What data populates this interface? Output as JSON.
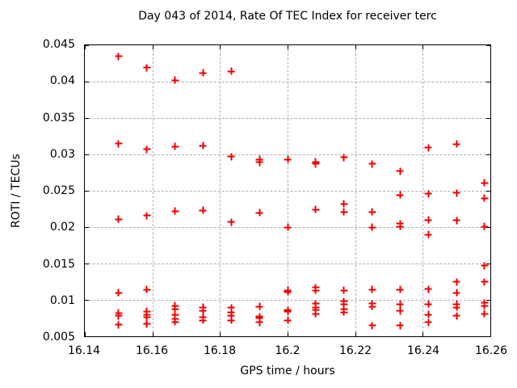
{
  "chart_data": {
    "type": "scatter",
    "title": "Day 043 of 2014, Rate Of TEC Index for receiver terc",
    "xlabel": "GPS time / hours",
    "ylabel": "ROTI / TECUs",
    "xlim": [
      16.14,
      16.26
    ],
    "ylim": [
      0.005,
      0.045
    ],
    "grid": true,
    "legend": false,
    "marker": "plus",
    "marker_color": "#ee0000",
    "grid_color": "#b0b0b0",
    "frame_color": "#000000",
    "xticks": {
      "values": [
        16.14,
        16.16,
        16.18,
        16.2,
        16.22,
        16.24,
        16.26
      ],
      "labels": [
        "16.14",
        "16.16",
        "16.18",
        "16.2",
        "16.22",
        "16.24",
        "16.26"
      ]
    },
    "yticks": {
      "values": [
        0.005,
        0.01,
        0.015,
        0.02,
        0.025,
        0.03,
        0.035,
        0.04,
        0.045
      ],
      "labels": [
        "0.005",
        "0.01",
        "0.015",
        "0.02",
        "0.025",
        "0.03",
        "0.035",
        "0.04",
        "0.045"
      ]
    },
    "series": [
      {
        "name": "ROTI",
        "points": [
          [
            16.15,
            0.0435
          ],
          [
            16.15,
            0.0315
          ],
          [
            16.15,
            0.0211
          ],
          [
            16.15,
            0.011
          ],
          [
            16.15,
            0.0082
          ],
          [
            16.15,
            0.0078
          ],
          [
            16.15,
            0.0066
          ],
          [
            16.1583,
            0.0419
          ],
          [
            16.1583,
            0.0307
          ],
          [
            16.1583,
            0.0216
          ],
          [
            16.1583,
            0.0114
          ],
          [
            16.1583,
            0.0084
          ],
          [
            16.1583,
            0.008
          ],
          [
            16.1583,
            0.0076
          ],
          [
            16.1583,
            0.0067
          ],
          [
            16.1667,
            0.0402
          ],
          [
            16.1667,
            0.0311
          ],
          [
            16.1667,
            0.0222
          ],
          [
            16.1667,
            0.0092
          ],
          [
            16.1667,
            0.0087
          ],
          [
            16.1667,
            0.0079
          ],
          [
            16.1667,
            0.0074
          ],
          [
            16.1667,
            0.007
          ],
          [
            16.175,
            0.0412
          ],
          [
            16.175,
            0.0312
          ],
          [
            16.175,
            0.0223
          ],
          [
            16.175,
            0.009
          ],
          [
            16.175,
            0.0085
          ],
          [
            16.175,
            0.0076
          ],
          [
            16.175,
            0.0072
          ],
          [
            16.1833,
            0.0414
          ],
          [
            16.1833,
            0.0297
          ],
          [
            16.1833,
            0.0207
          ],
          [
            16.1833,
            0.0089
          ],
          [
            16.1833,
            0.0083
          ],
          [
            16.1833,
            0.0078
          ],
          [
            16.1833,
            0.0072
          ],
          [
            16.1917,
            0.0293
          ],
          [
            16.1917,
            0.0289
          ],
          [
            16.1917,
            0.022
          ],
          [
            16.1917,
            0.0091
          ],
          [
            16.1917,
            0.0077
          ],
          [
            16.1917,
            0.0075
          ],
          [
            16.1917,
            0.0069
          ],
          [
            16.2,
            0.0293
          ],
          [
            16.2,
            0.02
          ],
          [
            16.2,
            0.0113
          ],
          [
            16.2,
            0.0111
          ],
          [
            16.2,
            0.0086
          ],
          [
            16.2,
            0.0084
          ],
          [
            16.2,
            0.0072
          ],
          [
            16.2083,
            0.029
          ],
          [
            16.2083,
            0.0287
          ],
          [
            16.2083,
            0.0224
          ],
          [
            16.2083,
            0.0117
          ],
          [
            16.2083,
            0.0113
          ],
          [
            16.2083,
            0.0095
          ],
          [
            16.2083,
            0.009
          ],
          [
            16.2083,
            0.0086
          ],
          [
            16.2083,
            0.0081
          ],
          [
            16.2167,
            0.0296
          ],
          [
            16.2167,
            0.0232
          ],
          [
            16.2167,
            0.0221
          ],
          [
            16.2167,
            0.0113
          ],
          [
            16.2167,
            0.0098
          ],
          [
            16.2167,
            0.0094
          ],
          [
            16.2167,
            0.0087
          ],
          [
            16.2167,
            0.0083
          ],
          [
            16.225,
            0.0287
          ],
          [
            16.225,
            0.0221
          ],
          [
            16.225,
            0.02
          ],
          [
            16.225,
            0.0114
          ],
          [
            16.225,
            0.0095
          ],
          [
            16.225,
            0.0091
          ],
          [
            16.225,
            0.0065
          ],
          [
            16.2333,
            0.0277
          ],
          [
            16.2333,
            0.0244
          ],
          [
            16.2333,
            0.0205
          ],
          [
            16.2333,
            0.0201
          ],
          [
            16.2333,
            0.0114
          ],
          [
            16.2333,
            0.0094
          ],
          [
            16.2333,
            0.0085
          ],
          [
            16.2333,
            0.0065
          ],
          [
            16.2417,
            0.0309
          ],
          [
            16.2417,
            0.0246
          ],
          [
            16.2417,
            0.021
          ],
          [
            16.2417,
            0.019
          ],
          [
            16.2417,
            0.0115
          ],
          [
            16.2417,
            0.0094
          ],
          [
            16.2417,
            0.008
          ],
          [
            16.2417,
            0.0069
          ],
          [
            16.25,
            0.0314
          ],
          [
            16.25,
            0.0247
          ],
          [
            16.25,
            0.0209
          ],
          [
            16.25,
            0.0125
          ],
          [
            16.25,
            0.011
          ],
          [
            16.25,
            0.0094
          ],
          [
            16.25,
            0.009
          ],
          [
            16.25,
            0.0078
          ],
          [
            16.2583,
            0.0261
          ],
          [
            16.2583,
            0.024
          ],
          [
            16.2583,
            0.0201
          ],
          [
            16.2583,
            0.0147
          ],
          [
            16.2583,
            0.0125
          ],
          [
            16.2583,
            0.0096
          ],
          [
            16.2583,
            0.0092
          ],
          [
            16.2583,
            0.0081
          ]
        ]
      }
    ]
  }
}
